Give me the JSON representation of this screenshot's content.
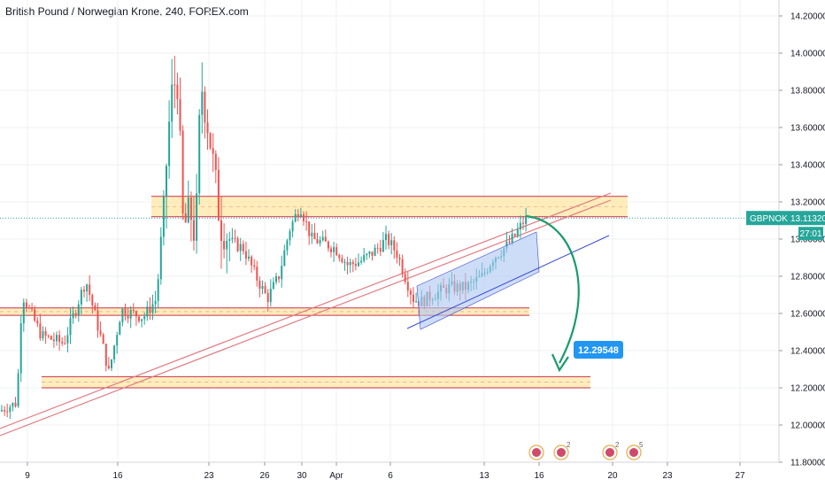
{
  "header": {
    "title": "British Pound / Norwegian Krone, 240, FOREX.com"
  },
  "chart_data": {
    "type": "candlestick",
    "symbol": "GBPNOK",
    "ylim": [
      11.8,
      14.25
    ],
    "y_ticks": [
      "14.20000",
      "14.00000",
      "13.80000",
      "13.60000",
      "13.40000",
      "13.20000",
      "13.00000",
      "12.80000",
      "12.60000",
      "12.40000",
      "12.20000",
      "12.00000",
      "11.80000"
    ],
    "x_ticks": [
      "9",
      "16",
      "23",
      "26",
      "30",
      "Apr",
      "6",
      "13",
      "16",
      "20",
      "23",
      "27"
    ],
    "price_label": {
      "symbol": "GBPNOK",
      "value": "13.11320",
      "countdown": "27:01",
      "price": 13.1132
    },
    "target_label": {
      "value": "12.29548",
      "price": 12.29548
    },
    "zones": [
      {
        "name": "upper-resistance-zone",
        "y_top": 13.23,
        "y_bottom": 13.12
      },
      {
        "name": "middle-support-zone",
        "y_top": 12.63,
        "y_bottom": 12.59
      },
      {
        "name": "lower-target-zone",
        "y_top": 12.26,
        "y_bottom": 12.2
      }
    ],
    "colors": {
      "up": "#26a69a",
      "down": "#ef5350",
      "zone_fill": "#ffe7a6",
      "zone_border": "#c9304e",
      "channel_fill": "#aec6f2",
      "channel_line": "#3b4cd0",
      "trendline": "#e07a80",
      "arrow": "#1a9b6b",
      "price_badge": "#26a69a",
      "target_badge": "#2196f3",
      "grid": "#eef0f3"
    },
    "events": [
      {
        "x_label": "16",
        "badge": ""
      },
      {
        "x_label": "16",
        "badge": "2"
      },
      {
        "x_label": "20",
        "badge": "2"
      },
      {
        "x_label": "20",
        "badge": "5"
      }
    ]
  }
}
